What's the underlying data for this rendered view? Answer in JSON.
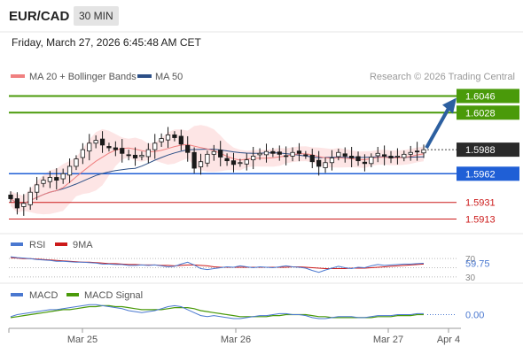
{
  "header": {
    "pair": "EUR/CAD",
    "timeframe": "30 MIN",
    "datetime": "Friday, March 27, 2026 6:45:48 AM CET"
  },
  "legend": {
    "ma20_label": "MA 20 + Bollinger Bands",
    "ma50_label": "MA 50",
    "credit": "Research © 2026 Trading Central",
    "rsi_label": "RSI",
    "rsi_ma_label": "9MA",
    "macd_label": "MACD",
    "macd_signal_label": "MACD Signal"
  },
  "colors": {
    "ma20": "#f08080",
    "ma50": "#2c4f86",
    "band_fill": "#fde0e0",
    "candle": "#1a1a1a",
    "resistance": "#4a9a0a",
    "support": "#cc1a1a",
    "pivot": "#1f5fd6",
    "arrow": "#2c5fa0",
    "rsi": "#4a78d0",
    "rsi_ma": "#cc1a1a",
    "macd": "#4a78d0",
    "macd_signal": "#4a9a0a"
  },
  "chart_data": [
    {
      "type": "candlestick",
      "title": "EUR/CAD",
      "x_tick_labels": [
        "Mar 25",
        "Mar 26",
        "Mar 27",
        "Apr 4"
      ],
      "ylim": [
        1.5903,
        1.6056
      ],
      "current_price": 1.5988,
      "levels": [
        {
          "value": 1.6046,
          "label": "1.6046",
          "kind": "resistance"
        },
        {
          "value": 1.6028,
          "label": "1.6028",
          "kind": "resistance"
        },
        {
          "value": 1.5962,
          "label": "1.5962",
          "kind": "pivot"
        },
        {
          "value": 1.5931,
          "label": "1.5931",
          "kind": "support"
        },
        {
          "value": 1.5913,
          "label": "1.5913",
          "kind": "support"
        }
      ],
      "forecast_target": 1.6046,
      "close_series": [
        1.5935,
        1.5925,
        1.593,
        1.5942,
        1.595,
        1.5955,
        1.5958,
        1.5955,
        1.5962,
        1.597,
        1.5978,
        1.5988,
        1.5995,
        1.5998,
        1.5993,
        1.599,
        1.5988,
        1.5984,
        1.5982,
        1.5979,
        1.5982,
        1.5988,
        1.5995,
        1.6,
        1.6004,
        1.6001,
        1.5994,
        1.5985,
        1.5968,
        1.5975,
        1.5983,
        1.5986,
        1.598,
        1.5976,
        1.5972,
        1.5974,
        1.5977,
        1.5981,
        1.5984,
        1.5986,
        1.5984,
        1.5983,
        1.5981,
        1.5985,
        1.5984,
        1.5982,
        1.5975,
        1.597,
        1.5974,
        1.5979,
        1.5985,
        1.5981,
        1.5979,
        1.5976,
        1.5973,
        1.598,
        1.5984,
        1.5981,
        1.5979,
        1.5981,
        1.5983,
        1.5985,
        1.5986,
        1.5988
      ]
    },
    {
      "type": "line",
      "title": "RSI",
      "series": [
        {
          "name": "RSI"
        },
        {
          "name": "9MA"
        }
      ],
      "y_tick_labels": [
        "70",
        "30"
      ],
      "ylim": [
        20,
        80
      ],
      "current_value": 59.75,
      "current_label": "59.75",
      "rsi_values": [
        74,
        72,
        71,
        70,
        68,
        67,
        66,
        64,
        64,
        63,
        62,
        62,
        61,
        60,
        58,
        58,
        57,
        57,
        55,
        55,
        56,
        55,
        56,
        54,
        52,
        53,
        58,
        62,
        56,
        48,
        46,
        48,
        50,
        52,
        51,
        54,
        52,
        50,
        52,
        51,
        50,
        52,
        54,
        52,
        51,
        49,
        44,
        40,
        45,
        49,
        53,
        50,
        48,
        51,
        50,
        54,
        57,
        55,
        56,
        57,
        58,
        58,
        59,
        59.75
      ],
      "rsi_ma_values": [
        72,
        71,
        70,
        70,
        69,
        68,
        67,
        66,
        65,
        64,
        63,
        62,
        62,
        61,
        60,
        59,
        59,
        58,
        57,
        57,
        56,
        56,
        56,
        55,
        55,
        54,
        55,
        56,
        56,
        55,
        54,
        52,
        51,
        51,
        51,
        51,
        51,
        51,
        51,
        51,
        51,
        51,
        51,
        52,
        52,
        51,
        50,
        49,
        48,
        48,
        48,
        48,
        49,
        49,
        49,
        50,
        51,
        52,
        53,
        54,
        55,
        56,
        57,
        58
      ]
    },
    {
      "type": "line",
      "title": "MACD",
      "series": [
        {
          "name": "MACD"
        },
        {
          "name": "MACD Signal"
        }
      ],
      "ylim": [
        -0.0012,
        0.0012
      ],
      "current_value": 0.0,
      "current_label": "0.00",
      "macd_values": [
        -0.0002,
        0.0,
        0.0001,
        0.0002,
        0.0003,
        0.0004,
        0.0005,
        0.0005,
        0.0006,
        0.0007,
        0.0008,
        0.0009,
        0.001,
        0.001,
        0.0009,
        0.0008,
        0.0007,
        0.0006,
        0.0004,
        0.0003,
        0.0002,
        0.0003,
        0.0004,
        0.0006,
        0.0008,
        0.0009,
        0.0008,
        0.0005,
        0.0002,
        -0.0001,
        -0.0002,
        -0.0001,
        -0.0002,
        -0.0003,
        -0.0004,
        -0.0004,
        -0.0003,
        -0.0002,
        -0.0001,
        -0.0001,
        0.0,
        0.0001,
        0.0001,
        0.0,
        0.0,
        -0.0001,
        -0.0003,
        -0.0004,
        -0.0004,
        -0.0003,
        -0.0002,
        -0.0002,
        -0.0002,
        -0.0003,
        -0.0003,
        -0.0002,
        -0.0001,
        -0.0001,
        -0.0001,
        0.0,
        0.0,
        0.0,
        0.0001,
        0.0001
      ],
      "signal_values": [
        -0.0003,
        -0.0002,
        -0.0001,
        0.0,
        0.0001,
        0.0002,
        0.0003,
        0.0004,
        0.0005,
        0.0005,
        0.0006,
        0.0007,
        0.0008,
        0.0008,
        0.0009,
        0.0009,
        0.0008,
        0.0008,
        0.0007,
        0.0006,
        0.0005,
        0.0005,
        0.0005,
        0.0005,
        0.0006,
        0.0007,
        0.0007,
        0.0007,
        0.0006,
        0.0004,
        0.0003,
        0.0002,
        0.0001,
        0.0,
        -0.0001,
        -0.0002,
        -0.0002,
        -0.0002,
        -0.0002,
        -0.0002,
        -0.0001,
        -0.0001,
        0.0,
        0.0,
        0.0,
        0.0,
        -0.0001,
        -0.0002,
        -0.0002,
        -0.0003,
        -0.0003,
        -0.0003,
        -0.0003,
        -0.0003,
        -0.0003,
        -0.0003,
        -0.0002,
        -0.0002,
        -0.0002,
        -0.0001,
        -0.0001,
        -0.0001,
        0.0,
        0.0
      ]
    }
  ]
}
